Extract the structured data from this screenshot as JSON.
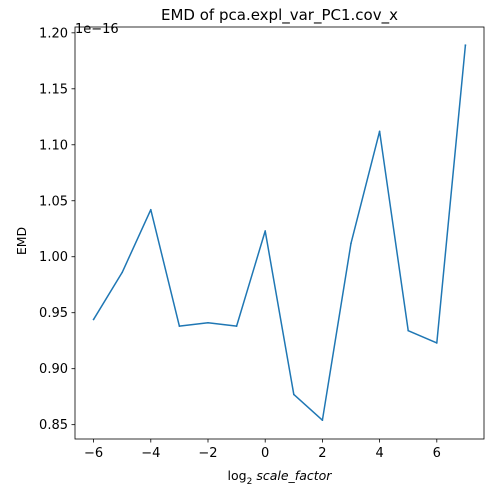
{
  "chart_data": {
    "type": "line",
    "title": "EMD of pca.expl_var_PC1.cov_x",
    "xlabel": "log₂ scale_factor",
    "xlabel_prefix": "log",
    "xlabel_sub": "2",
    "xlabel_main": "scale_factor",
    "ylabel": "EMD",
    "y_offset_text": "1e−16",
    "xlim": [
      -6.65,
      7.65
    ],
    "ylim": [
      0.8372,
      1.2052
    ],
    "xticks": [
      -6,
      -4,
      -2,
      0,
      2,
      4,
      6
    ],
    "xtick_labels": [
      "−6",
      "−4",
      "−2",
      "0",
      "2",
      "4",
      "6"
    ],
    "yticks": [
      0.85,
      0.9,
      0.95,
      1.0,
      1.05,
      1.1,
      1.15,
      1.2
    ],
    "ytick_labels": [
      "0.85",
      "0.90",
      "0.95",
      "1.00",
      "1.05",
      "1.10",
      "1.15",
      "1.20"
    ],
    "grid": false,
    "series": [
      {
        "color": "#1f77b4",
        "x": [
          -6,
          -5,
          -4,
          -3,
          -2,
          -1,
          0,
          1,
          2,
          3,
          4,
          5,
          6,
          7
        ],
        "y": [
          0.944,
          0.986,
          1.042,
          0.938,
          0.941,
          0.938,
          1.023,
          0.877,
          0.854,
          1.012,
          1.112,
          0.934,
          0.923,
          1.189
        ]
      }
    ]
  }
}
